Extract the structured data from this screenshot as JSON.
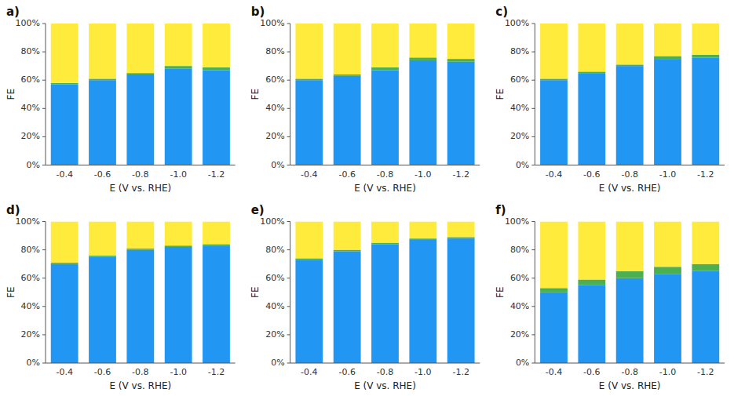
{
  "chart_data": [
    {
      "type": "bar",
      "stacked": true,
      "grid": false,
      "title": "a)",
      "xlabel": "E (V vs. RHE)",
      "ylabel": "FE",
      "categories": [
        "-0.4",
        "-0.6",
        "-0.8",
        "-1.0",
        "-1.2"
      ],
      "series": [
        {
          "color": "#2196F3",
          "values": [
            57,
            60,
            64,
            68,
            67
          ]
        },
        {
          "color": "#4CAF50",
          "values": [
            1,
            1,
            1,
            2,
            2
          ]
        },
        {
          "color": "#FFEB3B",
          "values": [
            42,
            39,
            35,
            30,
            31
          ]
        }
      ],
      "ylim": [
        0,
        100
      ],
      "yticks": [
        {
          "value": 0,
          "label": "0%"
        },
        {
          "value": 20,
          "label": "20%"
        },
        {
          "value": 40,
          "label": "40%"
        },
        {
          "value": 60,
          "label": "60%"
        },
        {
          "value": 80,
          "label": "80%"
        },
        {
          "value": 100,
          "label": "100%"
        }
      ]
    },
    {
      "type": "bar",
      "stacked": true,
      "grid": false,
      "title": "b)",
      "xlabel": "E (V vs. RHE)",
      "ylabel": "FE",
      "categories": [
        "-0.4",
        "-0.6",
        "-0.8",
        "-1.0",
        "-1.2"
      ],
      "series": [
        {
          "color": "#2196F3",
          "values": [
            60,
            63,
            67,
            74,
            73
          ]
        },
        {
          "color": "#4CAF50",
          "values": [
            1,
            1,
            2,
            2,
            2
          ]
        },
        {
          "color": "#FFEB3B",
          "values": [
            39,
            36,
            31,
            24,
            25
          ]
        }
      ],
      "ylim": [
        0,
        100
      ],
      "yticks": [
        {
          "value": 0,
          "label": "0%"
        },
        {
          "value": 20,
          "label": "20%"
        },
        {
          "value": 40,
          "label": "40%"
        },
        {
          "value": 60,
          "label": "60%"
        },
        {
          "value": 80,
          "label": "80%"
        },
        {
          "value": 100,
          "label": "100%"
        }
      ]
    },
    {
      "type": "bar",
      "stacked": true,
      "grid": false,
      "title": "c)",
      "xlabel": "E (V vs. RHE)",
      "ylabel": "FE",
      "categories": [
        "-0.4",
        "-0.6",
        "-0.8",
        "-1.0",
        "-1.2"
      ],
      "series": [
        {
          "color": "#2196F3",
          "values": [
            60,
            65,
            70,
            75,
            76
          ]
        },
        {
          "color": "#4CAF50",
          "values": [
            1,
            1,
            1,
            2,
            2
          ]
        },
        {
          "color": "#FFEB3B",
          "values": [
            39,
            34,
            29,
            23,
            22
          ]
        }
      ],
      "ylim": [
        0,
        100
      ],
      "yticks": [
        {
          "value": 0,
          "label": "0%"
        },
        {
          "value": 20,
          "label": "20%"
        },
        {
          "value": 40,
          "label": "40%"
        },
        {
          "value": 60,
          "label": "60%"
        },
        {
          "value": 80,
          "label": "80%"
        },
        {
          "value": 100,
          "label": "100%"
        }
      ]
    },
    {
      "type": "bar",
      "stacked": true,
      "grid": false,
      "title": "d)",
      "xlabel": "E (V vs. RHE)",
      "ylabel": "FE",
      "categories": [
        "-0.4",
        "-0.6",
        "-0.8",
        "-1.0",
        "-1.2"
      ],
      "series": [
        {
          "color": "#2196F3",
          "values": [
            70,
            75,
            80,
            82,
            83
          ]
        },
        {
          "color": "#4CAF50",
          "values": [
            1,
            1,
            1,
            1,
            1
          ]
        },
        {
          "color": "#FFEB3B",
          "values": [
            29,
            24,
            19,
            17,
            16
          ]
        }
      ],
      "ylim": [
        0,
        100
      ],
      "yticks": [
        {
          "value": 0,
          "label": "0%"
        },
        {
          "value": 20,
          "label": "20%"
        },
        {
          "value": 40,
          "label": "40%"
        },
        {
          "value": 60,
          "label": "60%"
        },
        {
          "value": 80,
          "label": "80%"
        },
        {
          "value": 100,
          "label": "100%"
        }
      ]
    },
    {
      "type": "bar",
      "stacked": true,
      "grid": false,
      "title": "e)",
      "xlabel": "E (V vs. RHE)",
      "ylabel": "FE",
      "categories": [
        "-0.4",
        "-0.6",
        "-0.8",
        "-1.0",
        "-1.2"
      ],
      "series": [
        {
          "color": "#2196F3",
          "values": [
            73,
            79,
            84,
            87,
            88
          ]
        },
        {
          "color": "#4CAF50",
          "values": [
            1,
            1,
            1,
            1,
            1
          ]
        },
        {
          "color": "#FFEB3B",
          "values": [
            26,
            20,
            15,
            12,
            11
          ]
        }
      ],
      "ylim": [
        0,
        100
      ],
      "yticks": [
        {
          "value": 0,
          "label": "0%"
        },
        {
          "value": 20,
          "label": "20%"
        },
        {
          "value": 40,
          "label": "40%"
        },
        {
          "value": 60,
          "label": "60%"
        },
        {
          "value": 80,
          "label": "80%"
        },
        {
          "value": 100,
          "label": "100%"
        }
      ]
    },
    {
      "type": "bar",
      "stacked": true,
      "grid": false,
      "title": "f)",
      "xlabel": "E (V vs. RHE)",
      "ylabel": "FE",
      "categories": [
        "-0.4",
        "-0.6",
        "-0.8",
        "-1.0",
        "-1.2"
      ],
      "series": [
        {
          "color": "#2196F3",
          "values": [
            50,
            55,
            60,
            63,
            65
          ]
        },
        {
          "color": "#4CAF50",
          "values": [
            3,
            4,
            5,
            5,
            5
          ]
        },
        {
          "color": "#FFEB3B",
          "values": [
            47,
            41,
            35,
            32,
            30
          ]
        }
      ],
      "ylim": [
        0,
        100
      ],
      "yticks": [
        {
          "value": 0,
          "label": "0%"
        },
        {
          "value": 20,
          "label": "20%"
        },
        {
          "value": 40,
          "label": "40%"
        },
        {
          "value": 60,
          "label": "60%"
        },
        {
          "value": 80,
          "label": "80%"
        },
        {
          "value": 100,
          "label": "100%"
        }
      ]
    }
  ]
}
